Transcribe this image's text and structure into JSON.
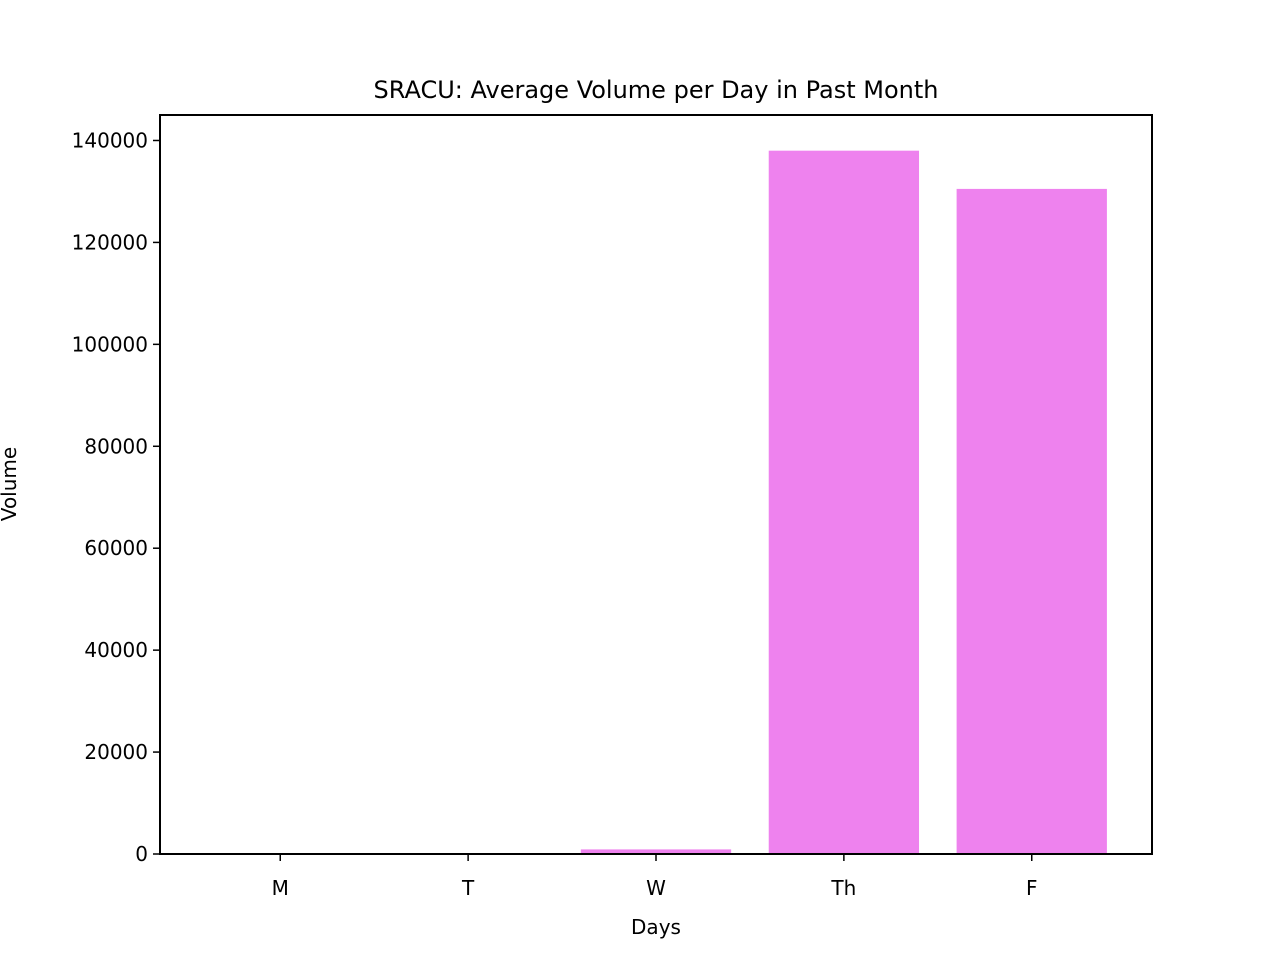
{
  "chart_data": {
    "type": "bar",
    "title": "SRACU: Average Volume per Day in Past Month",
    "xlabel": "Days",
    "ylabel": "Volume",
    "categories": [
      "M",
      "T",
      "W",
      "Th",
      "F"
    ],
    "values": [
      0,
      0,
      900,
      138000,
      130500
    ],
    "ylim": [
      0,
      145000
    ],
    "yticks": [
      0,
      20000,
      40000,
      60000,
      80000,
      100000,
      120000,
      140000
    ],
    "bar_color": "#ee82ee",
    "grid": false,
    "legend": "none"
  }
}
